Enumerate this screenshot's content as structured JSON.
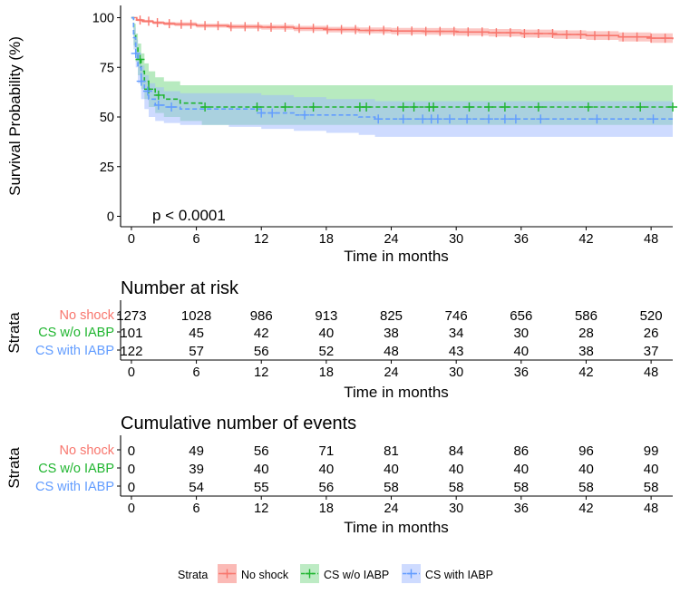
{
  "colors": {
    "no_shock": "#F8766D",
    "cs_wo_iabp": "#1FB52F",
    "cs_with_iabp": "#619CFF",
    "no_shock_band": "#F8766D",
    "cs_wo_iabp_band": "#7CD88A",
    "cs_with_iabp_band": "#9DB8FF"
  },
  "chart_data": [
    {
      "type": "line",
      "ylabel": "Survival Probability (%)",
      "xlabel": "Time in months",
      "xlim": [
        -1,
        50
      ],
      "ylim": [
        0,
        100
      ],
      "x_ticks": [
        "0",
        "6",
        "12",
        "18",
        "24",
        "30",
        "36",
        "42",
        "48"
      ],
      "y_ticks": [
        "0",
        "25",
        "50",
        "75",
        "100"
      ],
      "annotation": "p < 0.0001",
      "series": [
        {
          "name": "No shock",
          "x": [
            0,
            0.5,
            1,
            2,
            3,
            4,
            6,
            9,
            12,
            15,
            18,
            21,
            24,
            27,
            30,
            33,
            36,
            39,
            42,
            45,
            48,
            50
          ],
          "y": [
            100,
            98.8,
            98.2,
            97.5,
            97,
            96.7,
            96,
            95.5,
            95.2,
            94.6,
            94,
            93.6,
            93.3,
            93.1,
            92.8,
            92.4,
            92,
            91.5,
            91,
            90.3,
            89.7,
            89.2
          ],
          "lower": [
            100,
            98.2,
            97.5,
            96.7,
            96.1,
            95.7,
            95,
            94.4,
            94,
            93.3,
            92.6,
            92.1,
            91.7,
            91.4,
            91,
            90.5,
            90,
            89.4,
            88.8,
            88,
            87.3,
            86.7
          ],
          "upper": [
            100,
            99.4,
            98.9,
            98.3,
            97.9,
            97.7,
            97,
            96.6,
            96.4,
            95.9,
            95.4,
            95.1,
            94.9,
            94.8,
            94.6,
            94.3,
            94,
            93.6,
            93.2,
            92.6,
            92.1,
            91.7
          ],
          "censor_x": [
            0.8,
            1.6,
            2.4,
            3.5,
            4.6,
            5.5,
            6.8,
            8,
            9.2,
            10.5,
            11.7,
            12.9,
            14.2,
            15.5,
            16.8,
            18.1,
            19.4,
            20.7,
            22,
            23.3,
            24.6,
            25.9,
            27.2,
            28.5,
            29.8,
            31.1,
            32.4,
            33.7,
            35,
            36.3,
            37.6,
            38.9,
            40.2,
            41.5,
            42.8,
            44.1,
            45.4,
            46.7,
            48,
            49.3
          ]
        },
        {
          "name": "CS w/o IABP",
          "x": [
            0,
            0.2,
            0.4,
            0.6,
            0.9,
            1.2,
            1.6,
            2.2,
            3,
            4.5,
            6.5,
            50
          ],
          "y": [
            100,
            92,
            85,
            79,
            73,
            68,
            64,
            61,
            59,
            57,
            55,
            55
          ],
          "lower": [
            100,
            86,
            78,
            71,
            64,
            59,
            55,
            52,
            50,
            48,
            46,
            46
          ],
          "upper": [
            100,
            97,
            92,
            87,
            82,
            77,
            73,
            70,
            68,
            66,
            66,
            66
          ],
          "censor_x": [
            0.8,
            1.6,
            2.5,
            6.8,
            11.6,
            14.2,
            16.8,
            21.1,
            21.7,
            25.1,
            26.1,
            27.5,
            27.9,
            31.2,
            33,
            34.5,
            37.6,
            42.2,
            47,
            50
          ]
        },
        {
          "name": "CS with IABP",
          "x": [
            0,
            0.2,
            0.4,
            0.6,
            0.9,
            1.2,
            1.6,
            2.2,
            3,
            4.5,
            6.5,
            9,
            12,
            15,
            18,
            21,
            22.5,
            50
          ],
          "y": [
            100,
            90,
            82,
            75,
            68,
            63,
            59,
            56,
            55,
            54,
            54,
            54,
            52,
            51,
            51,
            50,
            49,
            49
          ],
          "lower": [
            100,
            84,
            75,
            67,
            59,
            54,
            50,
            48,
            47,
            46,
            46,
            45,
            44,
            43,
            42,
            41,
            40,
            40
          ],
          "upper": [
            100,
            95,
            89,
            82,
            76,
            71,
            67,
            65,
            63,
            62,
            62,
            62,
            61,
            60,
            59,
            59,
            58,
            58
          ],
          "censor_x": [
            0.4,
            0.9,
            1.5,
            2.5,
            3.7,
            12,
            13,
            16,
            22.8,
            25.1,
            26.9,
            27.7,
            28.3,
            29.4,
            31,
            33,
            34.5,
            35.5,
            37.8,
            43,
            48.2
          ]
        }
      ]
    },
    {
      "type": "table",
      "title": "Number at risk",
      "y_axis_label": "Strata",
      "xlabel": "Time in months",
      "columns": [
        "0",
        "6",
        "12",
        "18",
        "24",
        "30",
        "36",
        "42",
        "48"
      ],
      "rows": [
        {
          "label": "No shock",
          "values": [
            "1273",
            "1028",
            "986",
            "913",
            "825",
            "746",
            "656",
            "586",
            "520"
          ]
        },
        {
          "label": "CS w/o IABP",
          "values": [
            "101",
            "45",
            "42",
            "40",
            "38",
            "34",
            "30",
            "28",
            "26"
          ]
        },
        {
          "label": "CS with IABP",
          "values": [
            "122",
            "57",
            "56",
            "52",
            "48",
            "43",
            "40",
            "38",
            "37"
          ]
        }
      ]
    },
    {
      "type": "table",
      "title": "Cumulative number of events",
      "y_axis_label": "Strata",
      "xlabel": "Time in months",
      "columns": [
        "0",
        "6",
        "12",
        "18",
        "24",
        "30",
        "36",
        "42",
        "48"
      ],
      "rows": [
        {
          "label": "No shock",
          "values": [
            "0",
            "49",
            "56",
            "71",
            "81",
            "84",
            "86",
            "96",
            "99"
          ]
        },
        {
          "label": "CS w/o IABP",
          "values": [
            "0",
            "39",
            "40",
            "40",
            "40",
            "40",
            "40",
            "40",
            "40"
          ]
        },
        {
          "label": "CS with IABP",
          "values": [
            "0",
            "54",
            "55",
            "56",
            "58",
            "58",
            "58",
            "58",
            "58"
          ]
        }
      ]
    }
  ],
  "legend": {
    "title": "Strata",
    "items": [
      "No shock",
      "CS w/o IABP",
      "CS with IABP"
    ],
    "position": "bottom"
  }
}
